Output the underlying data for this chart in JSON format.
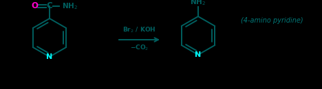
{
  "background_color": "#000000",
  "ring_color": "#005F5F",
  "N_color": "#00FFFF",
  "O_color": "#FF00CC",
  "text_color": "#005F5F",
  "arrow_color": "#005F5F",
  "name_color": "#007777",
  "title": "(4-amino pyridine)",
  "reagent_line1": "Br$_2$ / KOH",
  "reagent_line2": "−CO$_2$"
}
